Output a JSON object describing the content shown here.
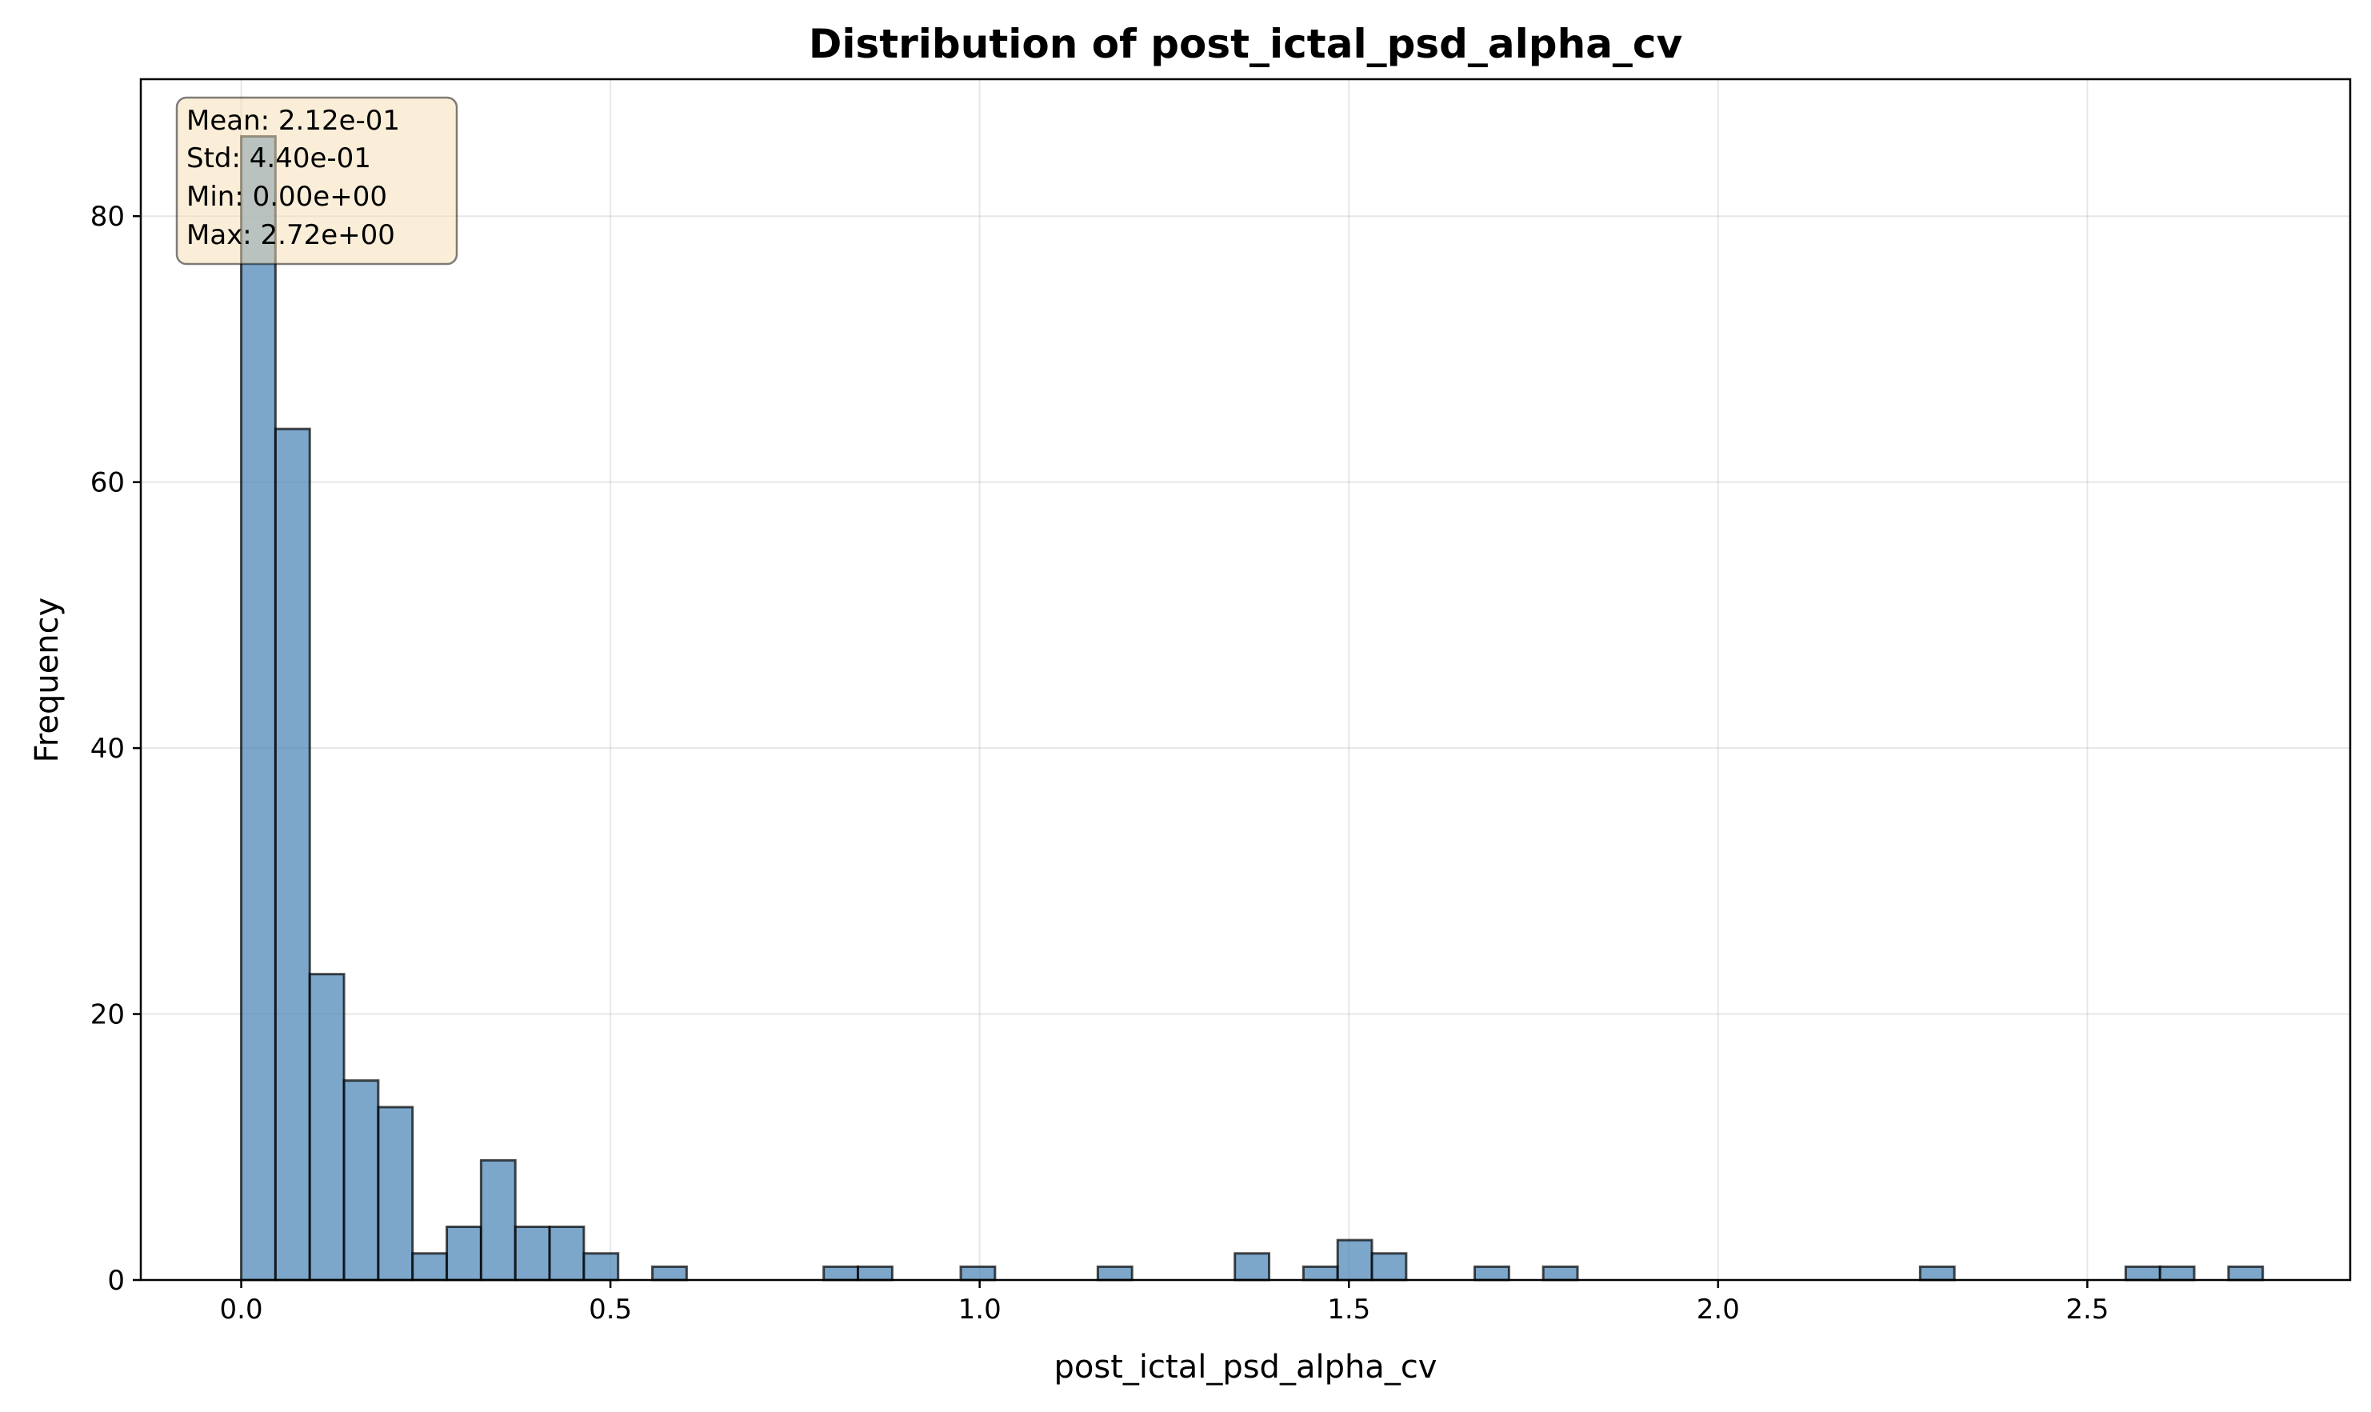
{
  "chart_data": {
    "type": "bar",
    "title": "Distribution of post_ictal_psd_alpha_cv",
    "xlabel": "post_ictal_psd_alpha_cv",
    "ylabel": "Frequency",
    "xlim": [
      -0.136,
      2.856
    ],
    "ylim": [
      0,
      90.3
    ],
    "x_ticks": [
      0.0,
      0.5,
      1.0,
      1.5,
      2.0,
      2.5
    ],
    "x_tick_labels": [
      "0.0",
      "0.5",
      "1.0",
      "1.5",
      "2.0",
      "2.5"
    ],
    "y_ticks": [
      0,
      20,
      40,
      60,
      80
    ],
    "y_tick_labels": [
      "0",
      "20",
      "40",
      "60",
      "80"
    ],
    "grid": true,
    "bin_start": 0.0,
    "bin_width": 0.0464,
    "values": [
      86,
      64,
      23,
      15,
      13,
      2,
      4,
      9,
      4,
      4,
      2,
      0,
      1,
      0,
      0,
      0,
      0,
      1,
      1,
      0,
      0,
      1,
      0,
      0,
      0,
      1,
      0,
      0,
      0,
      2,
      0,
      1,
      3,
      2,
      0,
      0,
      1,
      0,
      1,
      0,
      0,
      0,
      0,
      0,
      0,
      0,
      0,
      0,
      0,
      1,
      0,
      0,
      0,
      0,
      0,
      1,
      1,
      0,
      1
    ],
    "bar_color": "#4682b4",
    "bar_opacity": 0.7,
    "edge_color": "#000000",
    "stats_box": {
      "lines": [
        "Mean: 2.12e-01",
        "Std: 4.40e-01",
        "Min: 0.00e+00",
        "Max: 2.72e+00"
      ],
      "background": "#f5deb3",
      "placement": "top-left"
    }
  }
}
